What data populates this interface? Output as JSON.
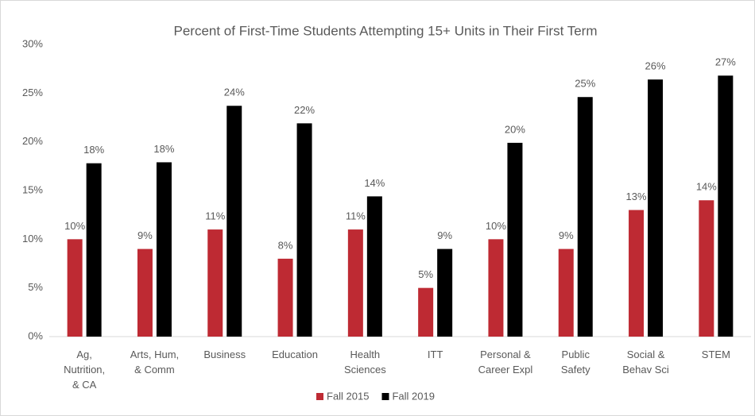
{
  "chart_data": {
    "type": "bar",
    "title": "Percent of First-Time Students Attempting 15+ Units in Their First Term",
    "categories": [
      [
        "Ag,",
        "Nutrition,",
        "& CA"
      ],
      [
        "Arts, Hum,",
        "& Comm"
      ],
      [
        "Business"
      ],
      [
        "Education"
      ],
      [
        "Health",
        "Sciences"
      ],
      [
        "ITT"
      ],
      [
        "Personal &",
        "Career Expl"
      ],
      [
        "Public",
        "Safety"
      ],
      [
        "Social &",
        "Behav Sci"
      ],
      [
        "STEM"
      ]
    ],
    "series": [
      {
        "name": "Fall 2015",
        "color": "#be2a33",
        "values": [
          10,
          9,
          11,
          8,
          11,
          5,
          10,
          9,
          13,
          14
        ],
        "value_labels": [
          "10%",
          "9%",
          "11%",
          "8%",
          "11%",
          "5%",
          "10%",
          "9%",
          "13%",
          "14%"
        ]
      },
      {
        "name": "Fall 2019",
        "color": "#000000",
        "values": [
          17.8,
          17.9,
          23.7,
          21.9,
          14.4,
          9,
          19.9,
          24.6,
          26.4,
          26.8
        ],
        "value_labels": [
          "18%",
          "18%",
          "24%",
          "22%",
          "14%",
          "9%",
          "20%",
          "25%",
          "26%",
          "27%"
        ]
      }
    ],
    "ylim": [
      0,
      30
    ],
    "yticks": [
      {
        "value": 0,
        "label": "0%"
      },
      {
        "value": 5,
        "label": "5%"
      },
      {
        "value": 10,
        "label": "10%"
      },
      {
        "value": 15,
        "label": "15%"
      },
      {
        "value": 20,
        "label": "20%"
      },
      {
        "value": 25,
        "label": "25%"
      },
      {
        "value": 30,
        "label": "30%"
      }
    ],
    "grid": false,
    "legend": "bottom"
  }
}
